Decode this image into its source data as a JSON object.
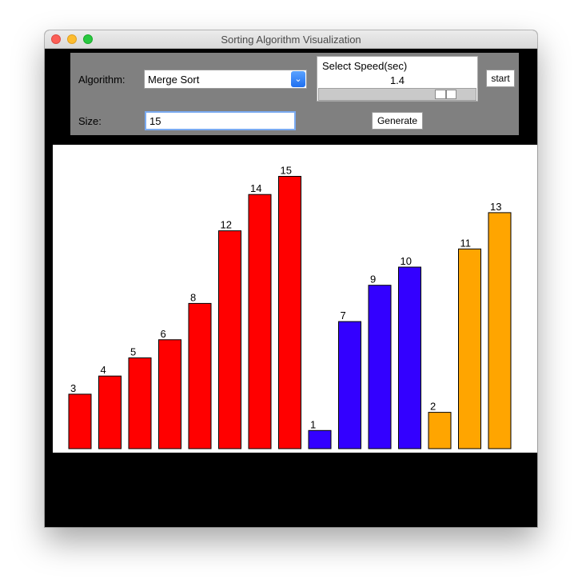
{
  "window": {
    "title": "Sorting Algorithm Visualization"
  },
  "controls": {
    "algorithm_label": "Algorithm:",
    "algorithm_value": "Merge Sort",
    "size_label": "Size:",
    "size_value": "15",
    "speed_title": "Select Speed(sec)",
    "speed_value": "1.4",
    "speed_fraction": 0.7,
    "start_label": "start",
    "generate_label": "Generate"
  },
  "colors": {
    "red": "#ff0000",
    "blue": "#3300ff",
    "orange": "#ffa500"
  },
  "chart_data": {
    "type": "bar",
    "values": [
      3,
      4,
      5,
      6,
      8,
      12,
      14,
      15,
      1,
      7,
      9,
      10,
      2,
      11,
      13
    ],
    "colors": [
      "red",
      "red",
      "red",
      "red",
      "red",
      "red",
      "red",
      "red",
      "blue",
      "blue",
      "blue",
      "blue",
      "orange",
      "orange",
      "orange"
    ],
    "ylim": [
      0,
      15
    ]
  }
}
